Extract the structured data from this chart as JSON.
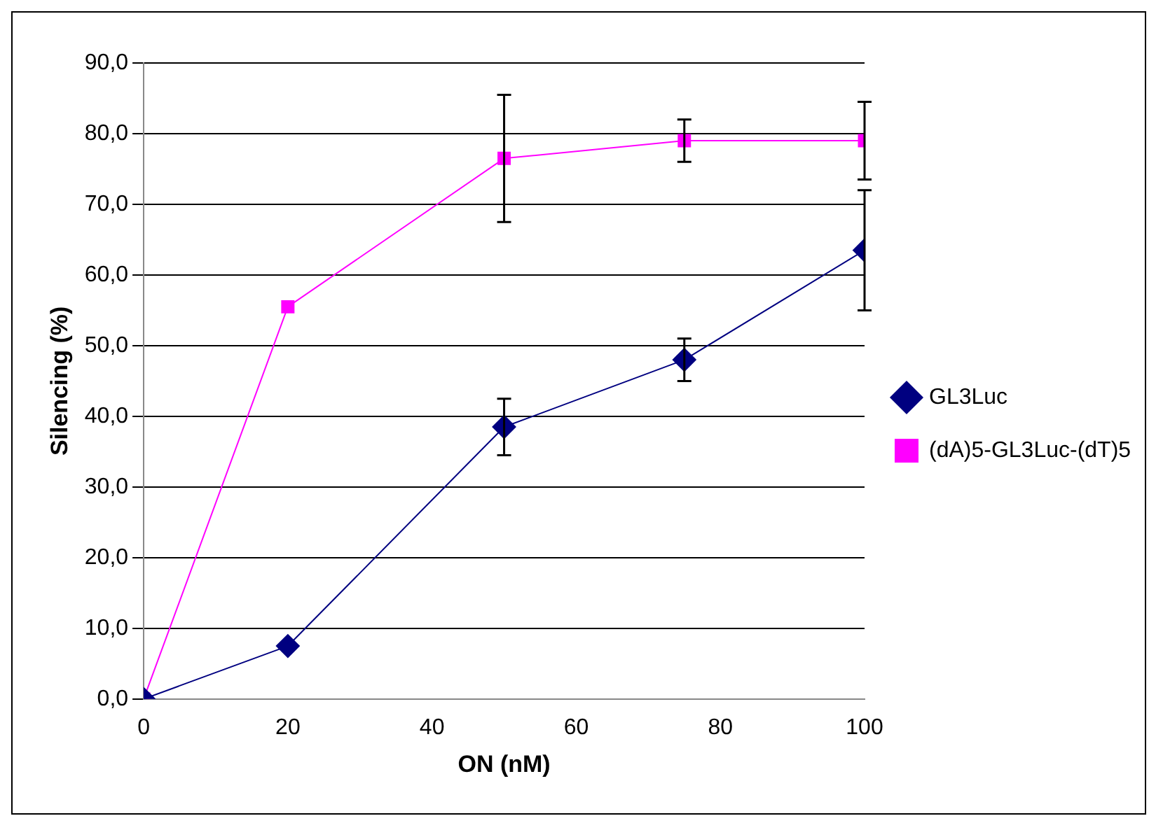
{
  "chart_data": {
    "type": "line",
    "xlabel": "ON (nM)",
    "ylabel": "Silencing (%)",
    "x": [
      0,
      20,
      50,
      75,
      100
    ],
    "series": [
      {
        "name": "GL3Luc",
        "color": "#000080",
        "marker": "diamond",
        "values": [
          0,
          7.5,
          38.5,
          48,
          63.5
        ],
        "errors": [
          null,
          null,
          4,
          3,
          8.5
        ]
      },
      {
        "name": "(dA)5-GL3Luc-(dT)5",
        "color": "#ff00ff",
        "marker": "square",
        "values": [
          0,
          55.5,
          76.5,
          79,
          79
        ],
        "errors": [
          null,
          null,
          9,
          3,
          5.5
        ]
      }
    ],
    "xlim": [
      0,
      100
    ],
    "xticks": [
      0,
      20,
      40,
      60,
      80,
      100
    ],
    "ylim": [
      0,
      90
    ],
    "yticks": [
      {
        "value": 0,
        "label": "0,0"
      },
      {
        "value": 10,
        "label": "10,0"
      },
      {
        "value": 20,
        "label": "20,0"
      },
      {
        "value": 30,
        "label": "30,0"
      },
      {
        "value": 40,
        "label": "40,0"
      },
      {
        "value": 50,
        "label": "50,0"
      },
      {
        "value": 60,
        "label": "60,0"
      },
      {
        "value": 70,
        "label": "70,0"
      },
      {
        "value": 80,
        "label": "80,0"
      },
      {
        "value": 90,
        "label": "90,0"
      }
    ],
    "grid": "y",
    "legend": "right"
  }
}
